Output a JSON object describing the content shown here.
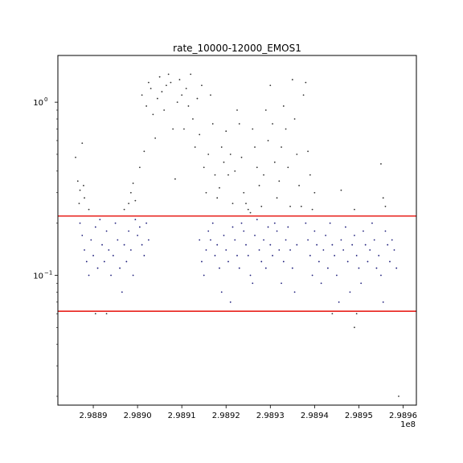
{
  "chart_data": {
    "type": "scatter",
    "title": "rate_10000-12000_EMOS1",
    "xlabel": "",
    "ylabel": "",
    "x_offset_label": "1e8",
    "xlim": [
      2.98882,
      2.98963
    ],
    "ylim_log10": [
      -1.75,
      0.27
    ],
    "yscale": "log",
    "x_ticks": [
      {
        "value": 2.9889,
        "label": "2.9889"
      },
      {
        "value": 2.989,
        "label": "2.9890"
      },
      {
        "value": 2.9891,
        "label": "2.9891"
      },
      {
        "value": 2.9892,
        "label": "2.9892"
      },
      {
        "value": 2.9893,
        "label": "2.9893"
      },
      {
        "value": 2.9894,
        "label": "2.9894"
      },
      {
        "value": 2.9895,
        "label": "2.9895"
      },
      {
        "value": 2.9896,
        "label": "2.9896"
      }
    ],
    "y_ticks": [
      {
        "value": 1.0,
        "label": "10",
        "exponent": "0"
      },
      {
        "value": 0.1,
        "label": "10",
        "exponent": "−1"
      }
    ],
    "thresholds": [
      {
        "name": "upper-threshold",
        "value": 0.22,
        "color": "#e8211c"
      },
      {
        "name": "lower-threshold",
        "value": 0.062,
        "color": "#e8211c"
      }
    ],
    "colors": {
      "inlier": "#1b1b7a",
      "outlier": "#333333",
      "axis": "#000000"
    },
    "series": [
      {
        "name": "above-upper",
        "color": "#333333",
        "points": [
          [
            2.98886,
            0.48
          ],
          [
            2.988865,
            0.35
          ],
          [
            2.98887,
            0.31
          ],
          [
            2.988875,
            0.58
          ],
          [
            2.98888,
            0.28
          ],
          [
            2.988868,
            0.26
          ],
          [
            2.988878,
            0.33
          ],
          [
            2.98889,
            0.24
          ],
          [
            2.98897,
            0.24
          ],
          [
            2.98898,
            0.26
          ],
          [
            2.988985,
            0.3
          ],
          [
            2.98899,
            0.34
          ],
          [
            2.988995,
            0.27
          ],
          [
            2.989005,
            0.42
          ],
          [
            2.98901,
            1.1
          ],
          [
            2.989015,
            0.52
          ],
          [
            2.98902,
            0.95
          ],
          [
            2.989025,
            1.3
          ],
          [
            2.98903,
            1.2
          ],
          [
            2.989035,
            0.85
          ],
          [
            2.98904,
            0.62
          ],
          [
            2.989045,
            1.05
          ],
          [
            2.98905,
            1.4
          ],
          [
            2.989055,
            1.15
          ],
          [
            2.98906,
            0.9
          ],
          [
            2.989065,
            1.25
          ],
          [
            2.98907,
            1.45
          ],
          [
            2.989075,
            1.3
          ],
          [
            2.98908,
            0.7
          ],
          [
            2.989085,
            0.36
          ],
          [
            2.98909,
            1.0
          ],
          [
            2.989095,
            1.35
          ],
          [
            2.9891,
            1.1
          ],
          [
            2.989105,
            0.7
          ],
          [
            2.98911,
            1.2
          ],
          [
            2.989115,
            0.95
          ],
          [
            2.98912,
            1.45
          ],
          [
            2.989125,
            0.8
          ],
          [
            2.98913,
            0.55
          ],
          [
            2.989135,
            1.05
          ],
          [
            2.98914,
            0.65
          ],
          [
            2.989145,
            1.25
          ],
          [
            2.98915,
            0.42
          ],
          [
            2.989155,
            0.3
          ],
          [
            2.98916,
            0.5
          ],
          [
            2.989165,
            1.1
          ],
          [
            2.98917,
            0.75
          ],
          [
            2.989175,
            0.38
          ],
          [
            2.98918,
            0.28
          ],
          [
            2.989185,
            0.32
          ],
          [
            2.98919,
            0.55
          ],
          [
            2.989195,
            0.45
          ],
          [
            2.9892,
            0.68
          ],
          [
            2.989205,
            0.38
          ],
          [
            2.98921,
            0.5
          ],
          [
            2.989215,
            0.26
          ],
          [
            2.98922,
            0.4
          ],
          [
            2.989225,
            0.9
          ],
          [
            2.98923,
            0.75
          ],
          [
            2.989235,
            0.48
          ],
          [
            2.98924,
            0.3
          ],
          [
            2.989245,
            0.26
          ],
          [
            2.98925,
            0.24
          ],
          [
            2.989255,
            0.23
          ],
          [
            2.98926,
            0.7
          ],
          [
            2.989265,
            0.55
          ],
          [
            2.98927,
            0.42
          ],
          [
            2.989275,
            0.33
          ],
          [
            2.98928,
            0.25
          ],
          [
            2.989285,
            0.38
          ],
          [
            2.98929,
            0.9
          ],
          [
            2.989295,
            0.6
          ],
          [
            2.9893,
            1.25
          ],
          [
            2.989305,
            0.75
          ],
          [
            2.98931,
            0.45
          ],
          [
            2.989315,
            0.28
          ],
          [
            2.98932,
            0.35
          ],
          [
            2.989325,
            0.55
          ],
          [
            2.98933,
            0.95
          ],
          [
            2.989335,
            0.7
          ],
          [
            2.98934,
            0.42
          ],
          [
            2.989345,
            0.25
          ],
          [
            2.98935,
            1.35
          ],
          [
            2.989355,
            0.8
          ],
          [
            2.98936,
            0.5
          ],
          [
            2.989365,
            0.33
          ],
          [
            2.98937,
            0.25
          ],
          [
            2.989375,
            1.1
          ],
          [
            2.98938,
            1.3
          ],
          [
            2.989385,
            0.52
          ],
          [
            2.98939,
            0.38
          ],
          [
            2.989395,
            0.24
          ],
          [
            2.9894,
            0.3
          ],
          [
            2.98946,
            0.31
          ],
          [
            2.98949,
            0.24
          ],
          [
            2.98955,
            0.44
          ],
          [
            2.989555,
            0.28
          ],
          [
            2.98956,
            0.25
          ]
        ]
      },
      {
        "name": "between-thresholds",
        "color": "#1b1b7a",
        "points": [
          [
            2.98887,
            0.2
          ],
          [
            2.988875,
            0.17
          ],
          [
            2.98888,
            0.14
          ],
          [
            2.988885,
            0.12
          ],
          [
            2.98889,
            0.1
          ],
          [
            2.988895,
            0.16
          ],
          [
            2.9889,
            0.13
          ],
          [
            2.988905,
            0.19
          ],
          [
            2.98891,
            0.11
          ],
          [
            2.988915,
            0.21
          ],
          [
            2.98892,
            0.15
          ],
          [
            2.988925,
            0.12
          ],
          [
            2.98893,
            0.18
          ],
          [
            2.988935,
            0.14
          ],
          [
            2.98894,
            0.1
          ],
          [
            2.988945,
            0.13
          ],
          [
            2.98895,
            0.2
          ],
          [
            2.988955,
            0.16
          ],
          [
            2.98896,
            0.11
          ],
          [
            2.988965,
            0.08
          ],
          [
            2.98897,
            0.15
          ],
          [
            2.988975,
            0.12
          ],
          [
            2.98898,
            0.18
          ],
          [
            2.988985,
            0.14
          ],
          [
            2.98899,
            0.1
          ],
          [
            2.988995,
            0.21
          ],
          [
            2.989,
            0.17
          ],
          [
            2.989005,
            0.19
          ],
          [
            2.98901,
            0.15
          ],
          [
            2.989015,
            0.13
          ],
          [
            2.98902,
            0.2
          ],
          [
            2.989025,
            0.16
          ],
          [
            2.98914,
            0.16
          ],
          [
            2.989145,
            0.12
          ],
          [
            2.98915,
            0.1
          ],
          [
            2.989155,
            0.14
          ],
          [
            2.98916,
            0.18
          ],
          [
            2.989165,
            0.16
          ],
          [
            2.98917,
            0.2
          ],
          [
            2.989175,
            0.13
          ],
          [
            2.98918,
            0.15
          ],
          [
            2.989185,
            0.11
          ],
          [
            2.98919,
            0.08
          ],
          [
            2.989195,
            0.17
          ],
          [
            2.9892,
            0.14
          ],
          [
            2.989205,
            0.12
          ],
          [
            2.98921,
            0.07
          ],
          [
            2.989215,
            0.19
          ],
          [
            2.98922,
            0.16
          ],
          [
            2.989225,
            0.13
          ],
          [
            2.98923,
            0.11
          ],
          [
            2.989235,
            0.2
          ],
          [
            2.98924,
            0.18
          ],
          [
            2.989245,
            0.15
          ],
          [
            2.98925,
            0.13
          ],
          [
            2.989255,
            0.1
          ],
          [
            2.98926,
            0.09
          ],
          [
            2.989265,
            0.17
          ],
          [
            2.98927,
            0.21
          ],
          [
            2.989275,
            0.14
          ],
          [
            2.98928,
            0.12
          ],
          [
            2.989285,
            0.16
          ],
          [
            2.98929,
            0.11
          ],
          [
            2.989295,
            0.19
          ],
          [
            2.9893,
            0.15
          ],
          [
            2.989305,
            0.13
          ],
          [
            2.98931,
            0.2
          ],
          [
            2.989315,
            0.18
          ],
          [
            2.98932,
            0.14
          ],
          [
            2.989325,
            0.09
          ],
          [
            2.98933,
            0.12
          ],
          [
            2.989335,
            0.16
          ],
          [
            2.98934,
            0.19
          ],
          [
            2.989345,
            0.14
          ],
          [
            2.98935,
            0.11
          ],
          [
            2.989355,
            0.08
          ],
          [
            2.98936,
            0.15
          ],
          [
            2.98938,
            0.2
          ],
          [
            2.989385,
            0.16
          ],
          [
            2.98939,
            0.13
          ],
          [
            2.989395,
            0.1
          ],
          [
            2.9894,
            0.18
          ],
          [
            2.989405,
            0.15
          ],
          [
            2.98941,
            0.12
          ],
          [
            2.989415,
            0.09
          ],
          [
            2.98942,
            0.14
          ],
          [
            2.989425,
            0.17
          ],
          [
            2.98943,
            0.11
          ],
          [
            2.989435,
            0.2
          ],
          [
            2.98944,
            0.15
          ],
          [
            2.989445,
            0.13
          ],
          [
            2.98945,
            0.1
          ],
          [
            2.989455,
            0.07
          ],
          [
            2.98946,
            0.16
          ],
          [
            2.989465,
            0.14
          ],
          [
            2.98947,
            0.19
          ],
          [
            2.989475,
            0.12
          ],
          [
            2.98948,
            0.08
          ],
          [
            2.989485,
            0.15
          ],
          [
            2.98949,
            0.17
          ],
          [
            2.989495,
            0.13
          ],
          [
            2.9895,
            0.11
          ],
          [
            2.989505,
            0.09
          ],
          [
            2.98951,
            0.18
          ],
          [
            2.989515,
            0.15
          ],
          [
            2.98952,
            0.12
          ],
          [
            2.989525,
            0.14
          ],
          [
            2.98953,
            0.2
          ],
          [
            2.989535,
            0.16
          ],
          [
            2.98954,
            0.11
          ],
          [
            2.989545,
            0.13
          ],
          [
            2.98955,
            0.1
          ],
          [
            2.989555,
            0.07
          ],
          [
            2.98956,
            0.18
          ],
          [
            2.989565,
            0.15
          ],
          [
            2.98957,
            0.12
          ],
          [
            2.989575,
            0.16
          ],
          [
            2.98958,
            0.14
          ],
          [
            2.989585,
            0.11
          ]
        ]
      },
      {
        "name": "below-lower",
        "color": "#333333",
        "points": [
          [
            2.988905,
            0.06
          ],
          [
            2.98893,
            0.06
          ],
          [
            2.98949,
            0.05
          ],
          [
            2.989495,
            0.06
          ],
          [
            2.98944,
            0.06
          ],
          [
            2.98959,
            0.02
          ]
        ]
      }
    ]
  }
}
